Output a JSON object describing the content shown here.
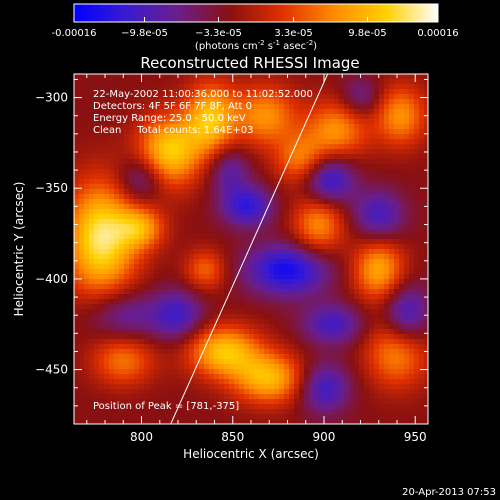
{
  "colorbar": {
    "tick_labels": [
      "-0.00016",
      "−9.8e-05",
      "−3.3e-05",
      "3.3e-05",
      "9.8e-05",
      "0.00016"
    ],
    "tick_values": [
      -0.00016,
      -9.8e-05,
      -3.3e-05,
      3.3e-05,
      9.8e-05,
      0.00016
    ],
    "range": [
      -0.00016,
      0.00016
    ],
    "units_main": "(photons cm",
    "units_sup1": "-2",
    "units_mid": " s",
    "units_sup2": "-1",
    "units_mid2": " asec",
    "units_sup3": "-2",
    "units_end": ")",
    "colormap": [
      "#0000ff",
      "#3a1bd0",
      "#6a1e8a",
      "#8a1010",
      "#e03000",
      "#ff8a00",
      "#ffd000",
      "#ffffff"
    ]
  },
  "annotations": {
    "line1": "22-May-2002 11:00:36.000 to 11:02:52.000",
    "line2": "Detectors: 4F 5F 6F 7F 8F, Att 0",
    "line3": "Energy Range: 25.0 - 50.0 keV",
    "line4": "Clean     Total counts: 1.64E+03",
    "peak": "Position of Peak = [781,-375]"
  },
  "footer": {
    "timestamp": "20-Apr-2013 07:53"
  },
  "chart_data": {
    "type": "heatmap",
    "title": "Reconstructed RHESSI Image",
    "xlabel": "Heliocentric X (arcsec)",
    "ylabel": "Heliocentric Y (arcsec)",
    "xlim": [
      763,
      957
    ],
    "ylim": [
      -480,
      -287
    ],
    "xticks": [
      800,
      850,
      900,
      950
    ],
    "yticks": [
      -300,
      -350,
      -400,
      -450
    ],
    "xtick_labels": [
      "800",
      "850",
      "900",
      "950"
    ],
    "ytick_labels": [
      "−300",
      "−350",
      "−400",
      "−450"
    ],
    "limb_line": {
      "x": [
        816,
        902
      ],
      "y": [
        -480,
        -287
      ]
    },
    "peak_position": [
      781,
      -375
    ],
    "sources": [
      {
        "x": 778,
        "y": -378,
        "sx": 14,
        "sy": 22,
        "amp": 1.0
      },
      {
        "x": 815,
        "y": -330,
        "sx": 12,
        "sy": 14,
        "amp": 0.85
      },
      {
        "x": 838,
        "y": -312,
        "sx": 10,
        "sy": 14,
        "amp": 0.8
      },
      {
        "x": 868,
        "y": -310,
        "sx": 12,
        "sy": 12,
        "amp": 0.6
      },
      {
        "x": 888,
        "y": -335,
        "sx": 10,
        "sy": 10,
        "amp": 0.55
      },
      {
        "x": 907,
        "y": -318,
        "sx": 12,
        "sy": 12,
        "amp": 0.6
      },
      {
        "x": 942,
        "y": -310,
        "sx": 10,
        "sy": 12,
        "amp": 0.6
      },
      {
        "x": 897,
        "y": -370,
        "sx": 10,
        "sy": 12,
        "amp": 0.6
      },
      {
        "x": 930,
        "y": -395,
        "sx": 10,
        "sy": 12,
        "amp": 0.7
      },
      {
        "x": 845,
        "y": -440,
        "sx": 14,
        "sy": 10,
        "amp": 0.8
      },
      {
        "x": 870,
        "y": -455,
        "sx": 14,
        "sy": 10,
        "amp": 0.75
      },
      {
        "x": 940,
        "y": -440,
        "sx": 12,
        "sy": 14,
        "amp": 0.6
      },
      {
        "x": 790,
        "y": -445,
        "sx": 12,
        "sy": 10,
        "amp": 0.5
      },
      {
        "x": 835,
        "y": -395,
        "sx": 8,
        "sy": 8,
        "amp": 0.45
      },
      {
        "x": 800,
        "y": -372,
        "sx": 9,
        "sy": 8,
        "amp": 0.55
      },
      {
        "x": 858,
        "y": -360,
        "sx": 10,
        "sy": 8,
        "amp": -0.6
      },
      {
        "x": 902,
        "y": -345,
        "sx": 10,
        "sy": 10,
        "amp": -0.7
      },
      {
        "x": 880,
        "y": -395,
        "sx": 16,
        "sy": 10,
        "amp": -0.75
      },
      {
        "x": 930,
        "y": -365,
        "sx": 10,
        "sy": 10,
        "amp": -0.5
      },
      {
        "x": 945,
        "y": -420,
        "sx": 9,
        "sy": 12,
        "amp": -0.6
      },
      {
        "x": 905,
        "y": -425,
        "sx": 12,
        "sy": 8,
        "amp": -0.5
      },
      {
        "x": 900,
        "y": -460,
        "sx": 10,
        "sy": 10,
        "amp": -0.55
      },
      {
        "x": 820,
        "y": -420,
        "sx": 10,
        "sy": 10,
        "amp": -0.5
      },
      {
        "x": 790,
        "y": -420,
        "sx": 14,
        "sy": 10,
        "amp": -0.4
      },
      {
        "x": 800,
        "y": -345,
        "sx": 9,
        "sy": 9,
        "amp": -0.45
      },
      {
        "x": 848,
        "y": -340,
        "sx": 8,
        "sy": 10,
        "amp": -0.4
      },
      {
        "x": 920,
        "y": -300,
        "sx": 8,
        "sy": 8,
        "amp": -0.35
      }
    ]
  }
}
